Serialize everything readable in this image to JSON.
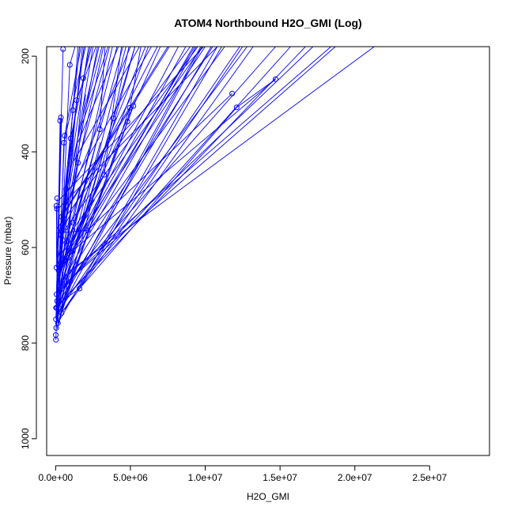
{
  "chart_data": {
    "type": "line",
    "title": "ATOM4 Northbound H2O_GMI (Log)",
    "xlabel": "H2O_GMI",
    "ylabel": "Pressure (mbar)",
    "xlim": [
      -600000,
      29000000
    ],
    "ylim": [
      1035,
      180
    ],
    "y_inverted": true,
    "grid": false,
    "series_color": "#0000ff",
    "x_ticks": [
      {
        "value": 0,
        "label": "0.0e+00"
      },
      {
        "value": 5000000,
        "label": "5.0e+06"
      },
      {
        "value": 10000000,
        "label": "1.0e+07"
      },
      {
        "value": 15000000,
        "label": "1.5e+07"
      },
      {
        "value": 20000000,
        "label": "2.0e+07"
      },
      {
        "value": 25000000,
        "label": "2.5e+07"
      }
    ],
    "y_ticks": [
      {
        "value": 200,
        "label": "200"
      },
      {
        "value": 400,
        "label": "400"
      },
      {
        "value": 600,
        "label": "600"
      },
      {
        "value": 800,
        "label": "800"
      },
      {
        "value": 1000,
        "label": "1000"
      }
    ],
    "points": [
      {
        "x": 500000,
        "y": 185
      },
      {
        "x": 950000,
        "y": 218
      },
      {
        "x": 1850000,
        "y": 246
      },
      {
        "x": 14700000,
        "y": 248
      },
      {
        "x": 11800000,
        "y": 278
      },
      {
        "x": 1400000,
        "y": 292
      },
      {
        "x": 12100000,
        "y": 307
      },
      {
        "x": 5200000,
        "y": 304
      },
      {
        "x": 4950000,
        "y": 308
      },
      {
        "x": 1150000,
        "y": 313
      },
      {
        "x": 350000,
        "y": 328
      },
      {
        "x": 3850000,
        "y": 330
      },
      {
        "x": 300000,
        "y": 335
      },
      {
        "x": 4800000,
        "y": 337
      },
      {
        "x": 2950000,
        "y": 353
      },
      {
        "x": 600000,
        "y": 366
      },
      {
        "x": 1000000,
        "y": 372
      },
      {
        "x": 550000,
        "y": 381
      },
      {
        "x": 1500000,
        "y": 423
      },
      {
        "x": 3250000,
        "y": 448
      },
      {
        "x": 700000,
        "y": 478
      },
      {
        "x": 100000,
        "y": 497
      },
      {
        "x": 50000,
        "y": 513
      },
      {
        "x": 80000,
        "y": 519
      },
      {
        "x": 400000,
        "y": 536
      },
      {
        "x": 1150000,
        "y": 548
      },
      {
        "x": 2150000,
        "y": 564
      },
      {
        "x": 1100000,
        "y": 608
      },
      {
        "x": 800000,
        "y": 622
      },
      {
        "x": 50000,
        "y": 642
      },
      {
        "x": 200000,
        "y": 648
      },
      {
        "x": 1600000,
        "y": 686
      },
      {
        "x": 60000,
        "y": 698
      },
      {
        "x": 100000,
        "y": 712
      },
      {
        "x": 30000,
        "y": 726
      },
      {
        "x": 80000,
        "y": 726
      },
      {
        "x": 200000,
        "y": 726
      },
      {
        "x": 400000,
        "y": 737
      },
      {
        "x": 20000,
        "y": 750
      },
      {
        "x": 150000,
        "y": 758
      },
      {
        "x": 40000,
        "y": 768
      },
      {
        "x": 10000,
        "y": 783
      },
      {
        "x": 20000,
        "y": 793
      }
    ],
    "segments": [
      [
        180000,
        760,
        5300000,
        180
      ],
      [
        150000,
        740,
        9800000,
        180
      ],
      [
        300000,
        720,
        4700000,
        180
      ],
      [
        100000,
        700,
        6200000,
        180
      ],
      [
        400000,
        680,
        10500000,
        180
      ],
      [
        120000,
        660,
        9300000,
        180
      ],
      [
        600000,
        730,
        13200000,
        180
      ],
      [
        200000,
        720,
        16700000,
        180
      ],
      [
        250000,
        700,
        12800000,
        180
      ],
      [
        350000,
        690,
        14700000,
        180
      ],
      [
        500000,
        680,
        17200000,
        180
      ],
      [
        700000,
        660,
        18400000,
        180
      ],
      [
        900000,
        650,
        21300000,
        180
      ],
      [
        400000,
        640,
        11300000,
        180
      ],
      [
        600000,
        620,
        10000000,
        180
      ],
      [
        300000,
        600,
        9800000,
        180
      ],
      [
        200000,
        580,
        9500000,
        180
      ],
      [
        100000,
        560,
        9000000,
        180
      ],
      [
        350000,
        540,
        7600000,
        180
      ],
      [
        150000,
        520,
        10800000,
        180
      ],
      [
        250000,
        500,
        9900000,
        180
      ],
      [
        1600000,
        686,
        12100000,
        307
      ],
      [
        2150000,
        564,
        11800000,
        278
      ],
      [
        1100000,
        608,
        14700000,
        248
      ],
      [
        12100000,
        307,
        14700000,
        248
      ],
      [
        1200000,
        660,
        18700000,
        180
      ],
      [
        800000,
        700,
        15700000,
        180
      ],
      [
        500000,
        720,
        12300000,
        180
      ],
      [
        300000,
        710,
        10400000,
        180
      ],
      [
        100000,
        690,
        9400000,
        180
      ],
      [
        80000,
        726,
        5300000,
        180
      ],
      [
        150000,
        670,
        4500000,
        180
      ],
      [
        200000,
        650,
        4100000,
        180
      ],
      [
        100000,
        630,
        3200000,
        180
      ],
      [
        250000,
        610,
        2800000,
        180
      ],
      [
        300000,
        590,
        2500000,
        180
      ],
      [
        350000,
        570,
        2200000,
        180
      ],
      [
        400000,
        550,
        1900000,
        180
      ],
      [
        450000,
        530,
        1600000,
        180
      ],
      [
        500000,
        510,
        1900000,
        180
      ],
      [
        60000,
        698,
        1800000,
        180
      ],
      [
        100000,
        712,
        1500000,
        180
      ],
      [
        30000,
        726,
        500000,
        185
      ],
      [
        200000,
        726,
        950000,
        218
      ],
      [
        400000,
        737,
        1850000,
        246
      ],
      [
        150000,
        758,
        1400000,
        292
      ],
      [
        40000,
        768,
        1150000,
        313
      ],
      [
        20000,
        750,
        350000,
        328
      ],
      [
        100000,
        740,
        3850000,
        330
      ],
      [
        80000,
        726,
        300000,
        335
      ],
      [
        200000,
        720,
        4800000,
        337
      ],
      [
        100000,
        700,
        2950000,
        353
      ],
      [
        150000,
        690,
        600000,
        366
      ],
      [
        200000,
        680,
        1000000,
        372
      ],
      [
        250000,
        670,
        550000,
        381
      ],
      [
        300000,
        660,
        1500000,
        423
      ],
      [
        100000,
        650,
        3250000,
        448
      ],
      [
        200000,
        640,
        700000,
        478
      ],
      [
        50000,
        642,
        100000,
        497
      ],
      [
        80000,
        620,
        50000,
        513
      ],
      [
        100000,
        600,
        80000,
        519
      ],
      [
        150000,
        590,
        400000,
        536
      ],
      [
        200000,
        580,
        1150000,
        548
      ],
      [
        100000,
        570,
        2150000,
        564
      ],
      [
        150000,
        560,
        1100000,
        608
      ],
      [
        50000,
        750,
        800000,
        622
      ],
      [
        100000,
        740,
        200000,
        648
      ],
      [
        50000,
        720,
        1600000,
        686
      ],
      [
        400000,
        737,
        4950000,
        308
      ],
      [
        300000,
        730,
        5200000,
        304
      ],
      [
        200000,
        700,
        3000000,
        380
      ],
      [
        100000,
        680,
        2400000,
        420
      ],
      [
        300000,
        650,
        3000000,
        460
      ],
      [
        400000,
        630,
        2600000,
        500
      ],
      [
        500000,
        610,
        2200000,
        530
      ],
      [
        250000,
        700,
        1300000,
        560
      ],
      [
        300000,
        740,
        1800000,
        600
      ],
      [
        200000,
        760,
        1200000,
        640
      ],
      [
        100000,
        770,
        900000,
        660
      ],
      [
        500000,
        560,
        6800000,
        180
      ],
      [
        700000,
        520,
        7500000,
        180
      ],
      [
        900000,
        480,
        6400000,
        180
      ],
      [
        1200000,
        420,
        5600000,
        180
      ],
      [
        1500000,
        380,
        4200000,
        180
      ],
      [
        1800000,
        340,
        3500000,
        180
      ],
      [
        2100000,
        300,
        3100000,
        180
      ],
      [
        1400000,
        292,
        2700000,
        180
      ],
      [
        1850000,
        246,
        2400000,
        180
      ],
      [
        950000,
        218,
        1300000,
        180
      ],
      [
        3850000,
        330,
        4900000,
        180
      ],
      [
        4800000,
        337,
        5700000,
        180
      ],
      [
        2950000,
        353,
        3300000,
        180
      ],
      [
        600000,
        366,
        1700000,
        180
      ],
      [
        1000000,
        372,
        2300000,
        180
      ],
      [
        550000,
        381,
        2000000,
        180
      ],
      [
        1500000,
        423,
        3600000,
        180
      ],
      [
        3250000,
        448,
        4400000,
        180
      ],
      [
        700000,
        478,
        2900000,
        180
      ],
      [
        400000,
        536,
        5000000,
        180
      ],
      [
        1150000,
        548,
        3800000,
        180
      ],
      [
        800000,
        622,
        8200000,
        180
      ],
      [
        200000,
        648,
        7000000,
        180
      ],
      [
        1100000,
        608,
        8700000,
        180
      ],
      [
        2150000,
        564,
        9200000,
        180
      ],
      [
        1600000,
        686,
        11100000,
        180
      ],
      [
        50000,
        642,
        6000000,
        180
      ],
      [
        400000,
        737,
        12500000,
        180
      ],
      [
        150000,
        758,
        10800000,
        180
      ],
      [
        200000,
        726,
        9700000,
        180
      ],
      [
        40000,
        768,
        2000000,
        280
      ],
      [
        20000,
        793,
        400000,
        330
      ]
    ]
  }
}
